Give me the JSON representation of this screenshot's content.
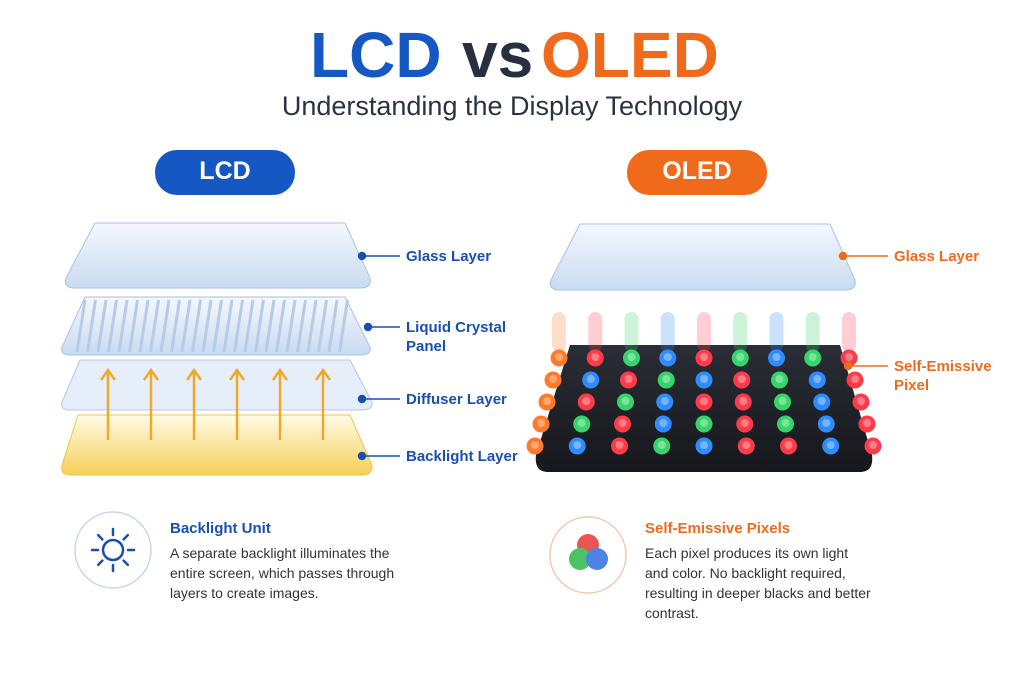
{
  "header": {
    "title_lcd": "LCD",
    "title_vs": "vs",
    "title_oled": "OLED",
    "subtitle": "Understanding the Display Technology"
  },
  "lcd": {
    "badge": "LCD",
    "layers": [
      "Glass Layer",
      "Liquid Crystal Panel",
      "Diffuser Layer",
      "Backlight Layer"
    ],
    "info": {
      "title": "Backlight Unit",
      "body": "A separate backlight illuminates the entire screen, which passes through layers to create images."
    }
  },
  "oled": {
    "badge": "OLED",
    "layers": [
      "Glass Layer",
      "Self-Emissive Pixel"
    ],
    "info": {
      "title": "Self-Emissive Pixels",
      "body": "Each pixel produces its own light and color. No backlight required, resulting in deeper blacks and better contrast."
    }
  }
}
